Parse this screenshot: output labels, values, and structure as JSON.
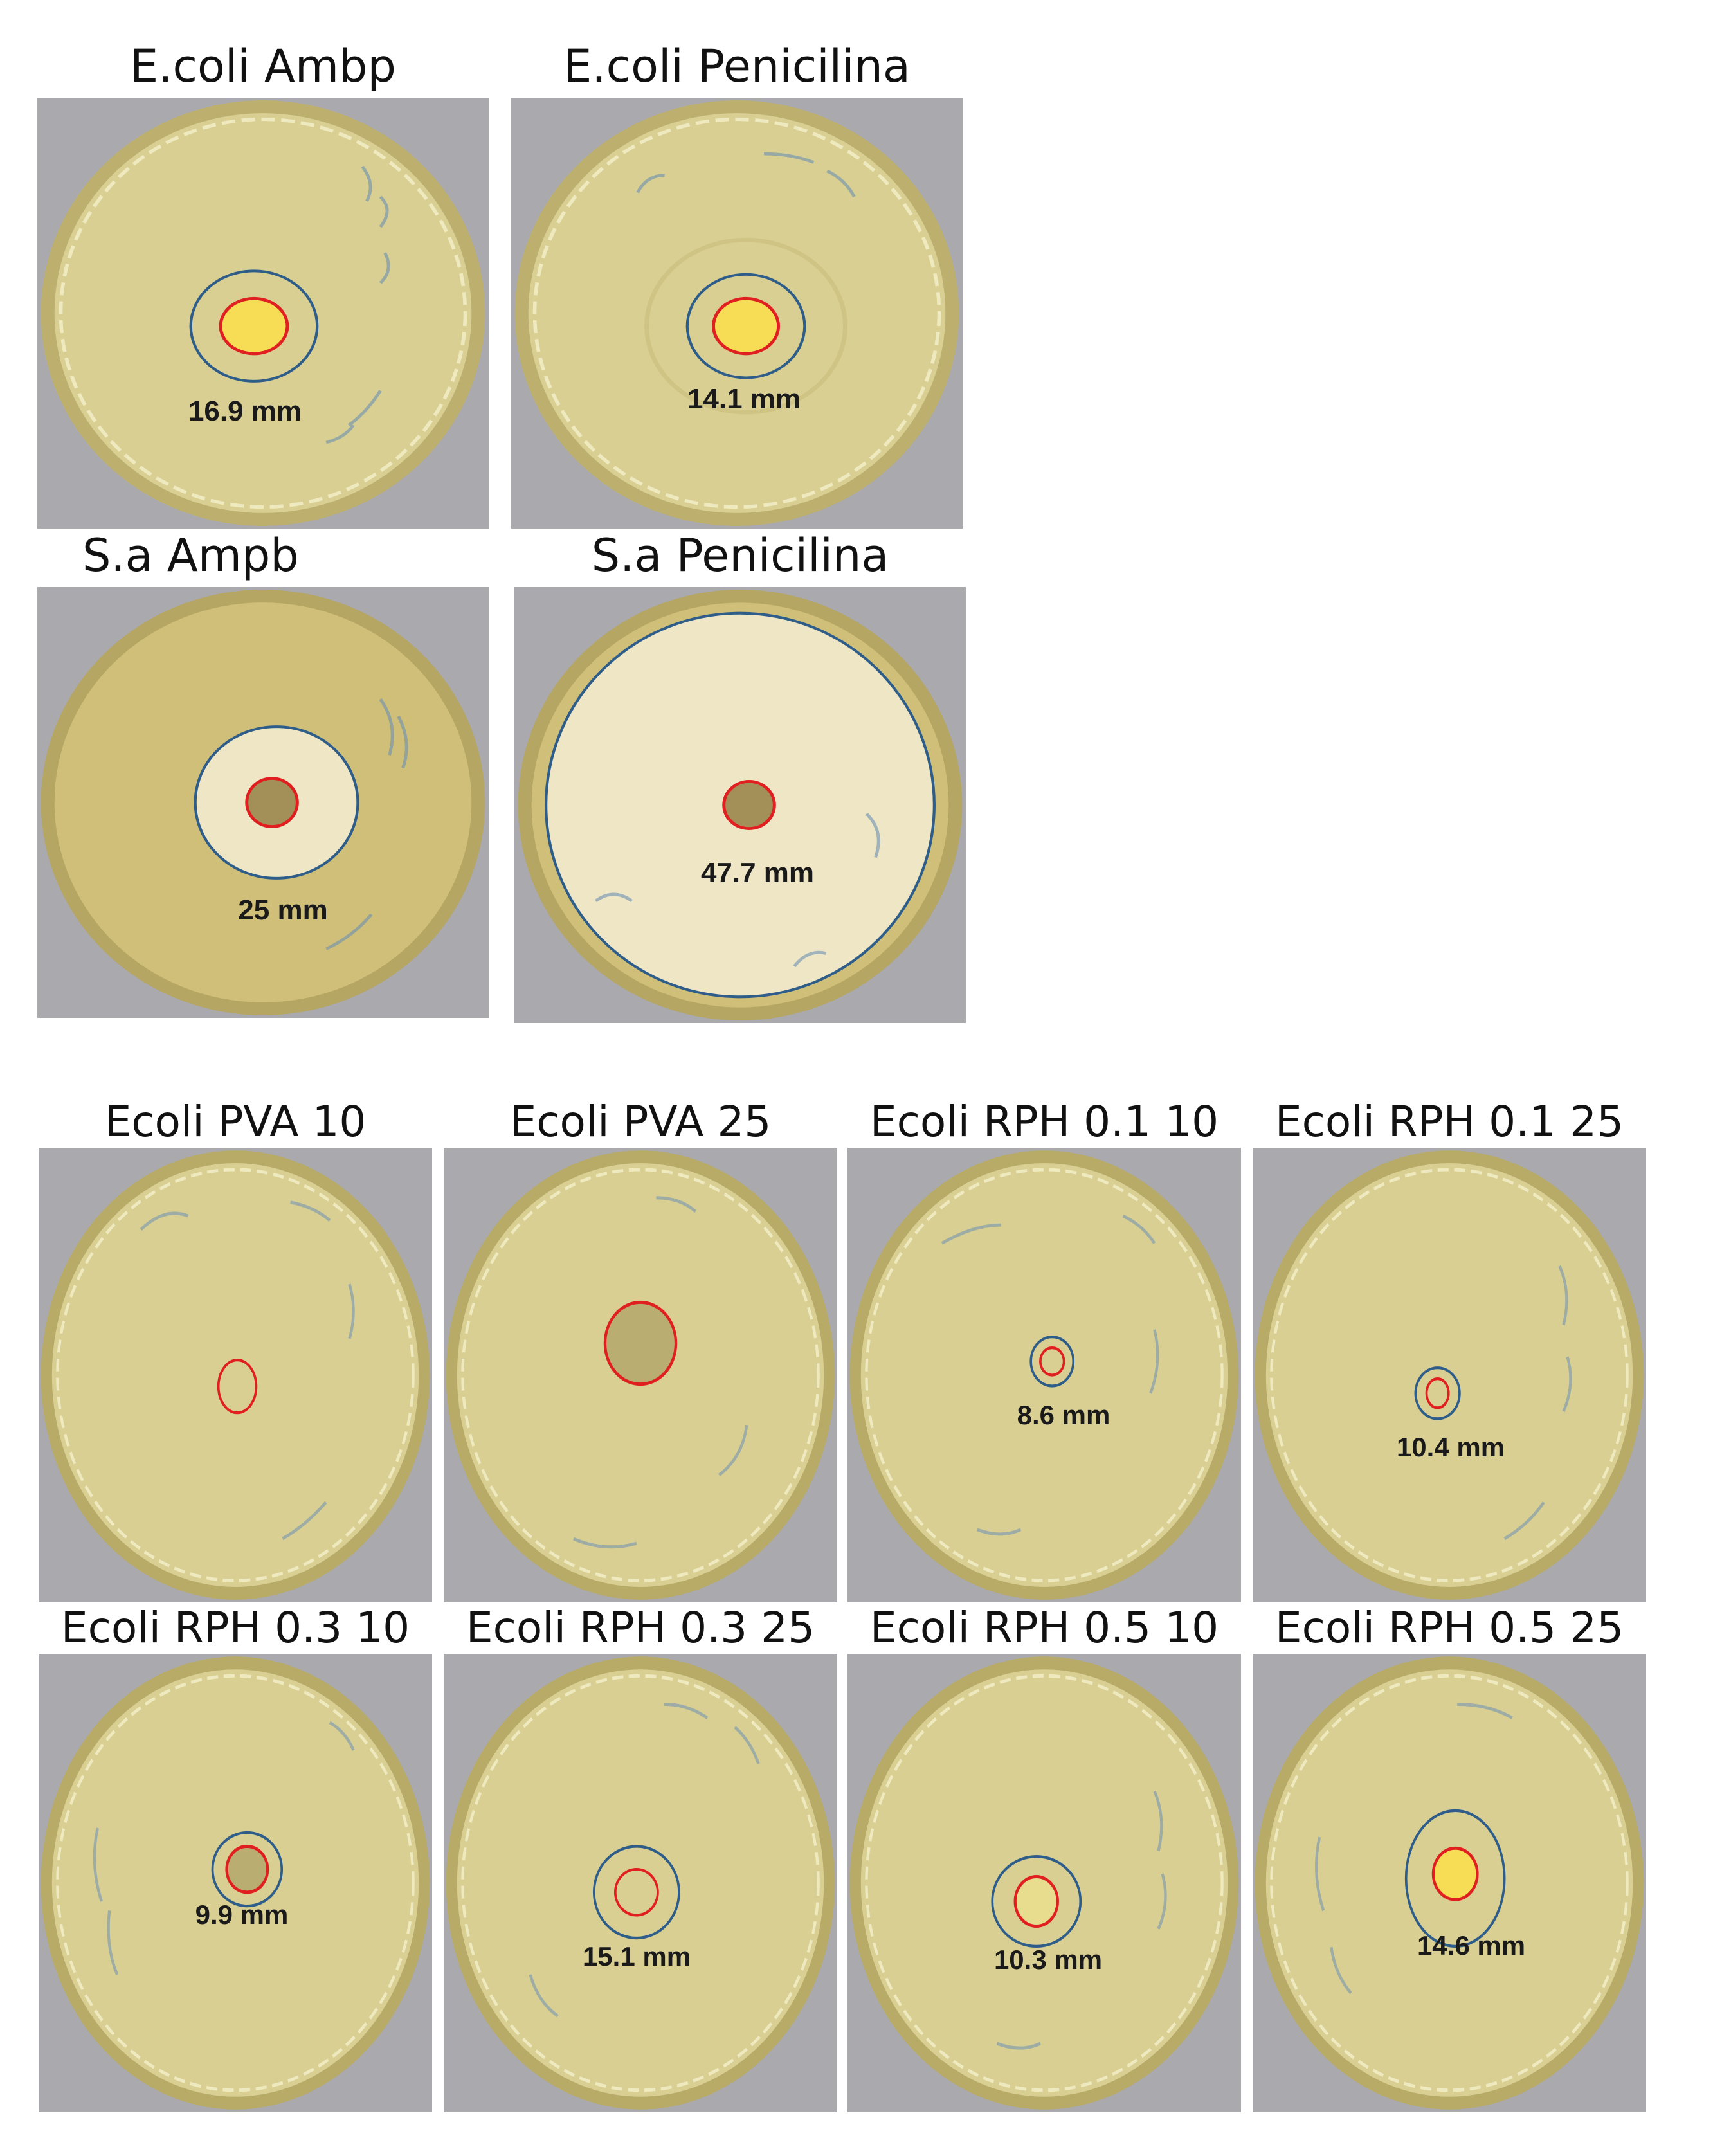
{
  "top_group": [
    {
      "title": "E.coli Ambp",
      "label": "16.9 mm"
    },
    {
      "title": "E.coli Penicilina",
      "label": "14.1 mm"
    },
    {
      "title": "S.a Ampb",
      "label": "25 mm"
    },
    {
      "title": "S.a Penicilina",
      "label": "47.7 mm"
    }
  ],
  "bottom_group": [
    {
      "title": "Ecoli PVA 10",
      "label": ""
    },
    {
      "title": "Ecoli PVA 25",
      "label": ""
    },
    {
      "title": "Ecoli RPH 0.1 10",
      "label": "8.6 mm"
    },
    {
      "title": "Ecoli RPH 0.1 25",
      "label": "10.4 mm"
    },
    {
      "title": "Ecoli RPH 0.3 10",
      "label": "9.9 mm"
    },
    {
      "title": "Ecoli RPH 0.3 25",
      "label": "15.1 mm"
    },
    {
      "title": "Ecoli RPH 0.5 10",
      "label": "10.3 mm"
    },
    {
      "title": "Ecoli RPH 0.5 25",
      "label": "14.6 mm"
    }
  ],
  "colors": {
    "agar": "#d9cf92",
    "rim": "#bdb06e",
    "background_grey": "#a9a9ae",
    "disc": "#f7dc55",
    "zone_outline_blue": "#2f5d8a",
    "disc_outline_red": "#e02020",
    "clear_zone": "#efe6c6",
    "marker_ink": "#6b8fb3"
  }
}
